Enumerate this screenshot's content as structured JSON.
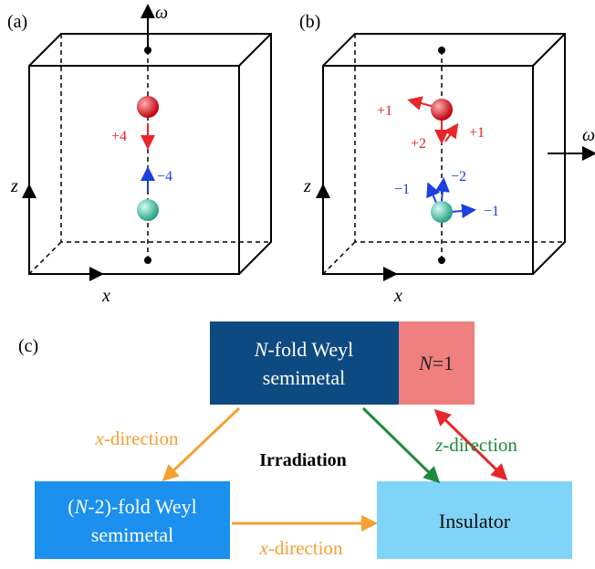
{
  "panels": [
    {
      "label": "(a)",
      "axis_up": "ω",
      "axis_z": "z",
      "axis_x": "x",
      "charges": [
        "+4",
        "−4"
      ]
    },
    {
      "label": "(b)",
      "axis_right": "ω",
      "axis_z": "z",
      "axis_x": "x",
      "charges": [
        "+1",
        "+2",
        "+1",
        "−1",
        "−2",
        "−1"
      ]
    }
  ],
  "flow": {
    "label": "(c)",
    "center": "Irradiation",
    "nodes": [
      {
        "italic": "N",
        "line1": "-fold Weyl",
        "line2": "semimetal"
      },
      {
        "italic": "N",
        "text": "=1"
      },
      {
        "pre": "(",
        "italic": "N",
        "line1": "-2)-fold Weyl",
        "line2": "semimetal"
      },
      {
        "text": "Insulator"
      }
    ],
    "edges": [
      {
        "italic": "x",
        "text": "-direction"
      },
      {
        "italic": "z",
        "text": "-direction"
      },
      {
        "italic": "x",
        "text": "-direction"
      }
    ]
  }
}
